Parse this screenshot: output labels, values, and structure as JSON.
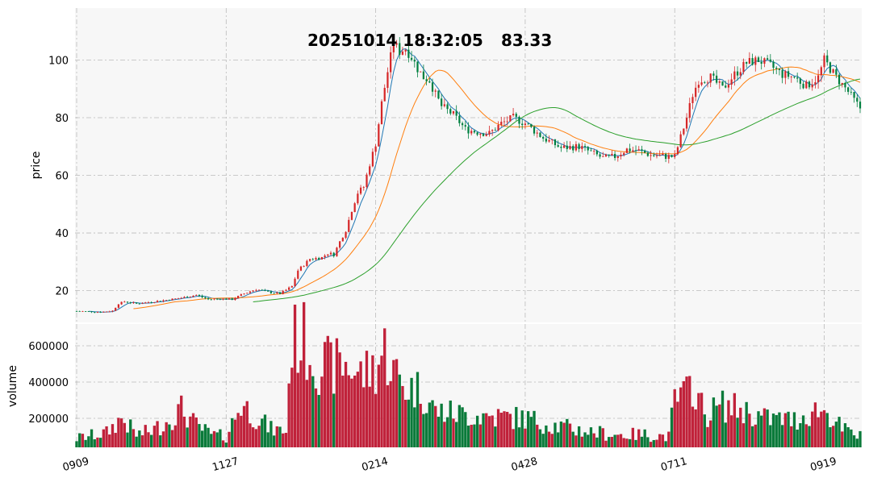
{
  "chart_data": {
    "type": "candlestick",
    "title_date": "20251014 18:32:05",
    "title_price": "83.33",
    "price_panel": {
      "ylabel": "price",
      "ylim": [
        9,
        118
      ],
      "yticks": [
        20,
        40,
        60,
        80,
        100
      ]
    },
    "volume_panel": {
      "ylabel": "volume",
      "ylim": [
        40000,
        720000
      ],
      "yticks": [
        200000,
        400000,
        600000
      ],
      "ytick_labels": [
        "200000",
        "400000",
        "600000"
      ]
    },
    "xlim": [
      0,
      262
    ],
    "xticks": [
      {
        "index": 0,
        "label": "0909"
      },
      {
        "index": 50,
        "label": "1127"
      },
      {
        "index": 100,
        "label": "0214"
      },
      {
        "index": 150,
        "label": "0428"
      },
      {
        "index": 200,
        "label": "0711"
      },
      {
        "index": 250,
        "label": "0919"
      }
    ],
    "price_keypoints": [
      [
        0,
        12.9
      ],
      [
        8,
        12.6
      ],
      [
        12,
        13.0
      ],
      [
        14,
        15.5
      ],
      [
        16,
        16.2
      ],
      [
        20,
        15.5
      ],
      [
        28,
        16.5
      ],
      [
        35,
        17.5
      ],
      [
        40,
        18.5
      ],
      [
        44,
        17.0
      ],
      [
        48,
        17.2
      ],
      [
        52,
        17.0
      ],
      [
        56,
        19.0
      ],
      [
        60,
        20.5
      ],
      [
        64,
        19.5
      ],
      [
        68,
        19.0
      ],
      [
        72,
        21.5
      ],
      [
        74,
        27.0
      ],
      [
        78,
        31.0
      ],
      [
        82,
        31.5
      ],
      [
        84,
        33.0
      ],
      [
        86,
        32.5
      ],
      [
        88,
        37.0
      ],
      [
        90,
        41.0
      ],
      [
        92,
        48.0
      ],
      [
        94,
        54.0
      ],
      [
        96,
        56.0
      ],
      [
        98,
        64.0
      ],
      [
        100,
        71.0
      ],
      [
        102,
        85.0
      ],
      [
        104,
        96.0
      ],
      [
        106,
        106.0
      ],
      [
        108,
        103.0
      ],
      [
        110,
        104.0
      ],
      [
        112,
        101.0
      ],
      [
        114,
        97.0
      ],
      [
        116,
        94.0
      ],
      [
        118,
        93.0
      ],
      [
        120,
        88.0
      ],
      [
        122,
        84.0
      ],
      [
        126,
        81.0
      ],
      [
        130,
        76.0
      ],
      [
        134,
        75.0
      ],
      [
        138,
        74.5
      ],
      [
        142,
        78.0
      ],
      [
        146,
        80.0
      ],
      [
        150,
        78.0
      ],
      [
        156,
        73.0
      ],
      [
        162,
        69.5
      ],
      [
        168,
        70.0
      ],
      [
        172,
        68.0
      ],
      [
        176,
        66.0
      ],
      [
        180,
        66.5
      ],
      [
        184,
        69.0
      ],
      [
        188,
        68.5
      ],
      [
        192,
        67.0
      ],
      [
        198,
        66.5
      ],
      [
        200,
        66.5
      ],
      [
        204,
        80.0
      ],
      [
        206,
        88.0
      ],
      [
        208,
        93.0
      ],
      [
        212,
        94.0
      ],
      [
        216,
        90.0
      ],
      [
        220,
        95.0
      ],
      [
        224,
        99.0
      ],
      [
        228,
        100.0
      ],
      [
        232,
        98.0
      ],
      [
        236,
        95.0
      ],
      [
        240,
        94.0
      ],
      [
        244,
        91.0
      ],
      [
        248,
        94.0
      ],
      [
        250,
        100.0
      ],
      [
        254,
        94.0
      ],
      [
        258,
        89.0
      ],
      [
        260,
        86.0
      ],
      [
        262,
        83.33
      ]
    ],
    "volume_keypoints": [
      [
        0,
        90000
      ],
      [
        10,
        120000
      ],
      [
        15,
        200000
      ],
      [
        20,
        110000
      ],
      [
        25,
        130000
      ],
      [
        30,
        180000
      ],
      [
        35,
        250000
      ],
      [
        40,
        160000
      ],
      [
        45,
        110000
      ],
      [
        50,
        100000
      ],
      [
        55,
        280000
      ],
      [
        60,
        210000
      ],
      [
        65,
        140000
      ],
      [
        70,
        130000
      ],
      [
        72,
        640000
      ],
      [
        76,
        630000
      ],
      [
        80,
        510000
      ],
      [
        85,
        480000
      ],
      [
        90,
        500000
      ],
      [
        95,
        440000
      ],
      [
        100,
        480000
      ],
      [
        103,
        580000
      ],
      [
        106,
        460000
      ],
      [
        110,
        370000
      ],
      [
        115,
        360000
      ],
      [
        120,
        240000
      ],
      [
        130,
        220000
      ],
      [
        140,
        210000
      ],
      [
        150,
        200000
      ],
      [
        160,
        160000
      ],
      [
        170,
        130000
      ],
      [
        180,
        110000
      ],
      [
        190,
        110000
      ],
      [
        198,
        100000
      ],
      [
        200,
        300000
      ],
      [
        204,
        330000
      ],
      [
        206,
        400000
      ],
      [
        210,
        220000
      ],
      [
        216,
        270000
      ],
      [
        222,
        250000
      ],
      [
        230,
        200000
      ],
      [
        240,
        190000
      ],
      [
        248,
        250000
      ],
      [
        252,
        220000
      ],
      [
        256,
        140000
      ],
      [
        262,
        100000
      ]
    ],
    "moving_averages": [
      {
        "window": 5,
        "color": "#1f77b4"
      },
      {
        "window": 20,
        "color": "#ff7f0e"
      },
      {
        "window": 60,
        "color": "#2ca02c"
      }
    ],
    "colors": {
      "up": "#d62728",
      "down": "#008040",
      "up_volume": "#c0213a",
      "down_volume": "#0a7a3a",
      "grid": "#bbbbbb",
      "panel_bg": "#f5f5f5"
    }
  }
}
